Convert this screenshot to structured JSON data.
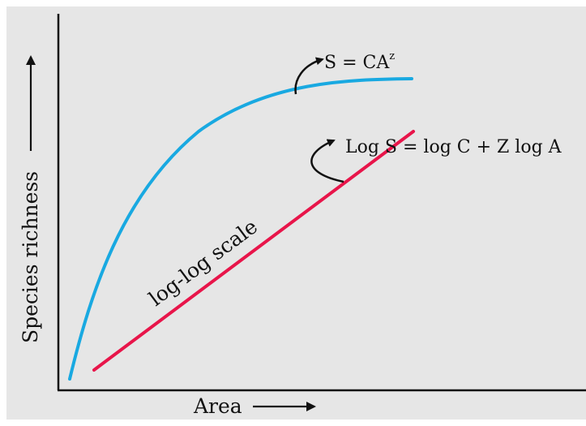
{
  "chart_data": {
    "type": "line",
    "title": "",
    "xlabel": "Area",
    "ylabel": "Species richness",
    "grid": false,
    "background_color": "#e6e6e6",
    "series": [
      {
        "name": "",
        "label": "S = CA",
        "label_superscript": "z",
        "color": "#19a9e1",
        "shape": "saturating-curve"
      },
      {
        "name": "",
        "label": "Log S = log C + Z log A",
        "color": "#e8154a",
        "shape": "straight-line"
      }
    ],
    "annotations": [
      {
        "text": "log-log scale",
        "refers_to_series": 1
      }
    ]
  }
}
